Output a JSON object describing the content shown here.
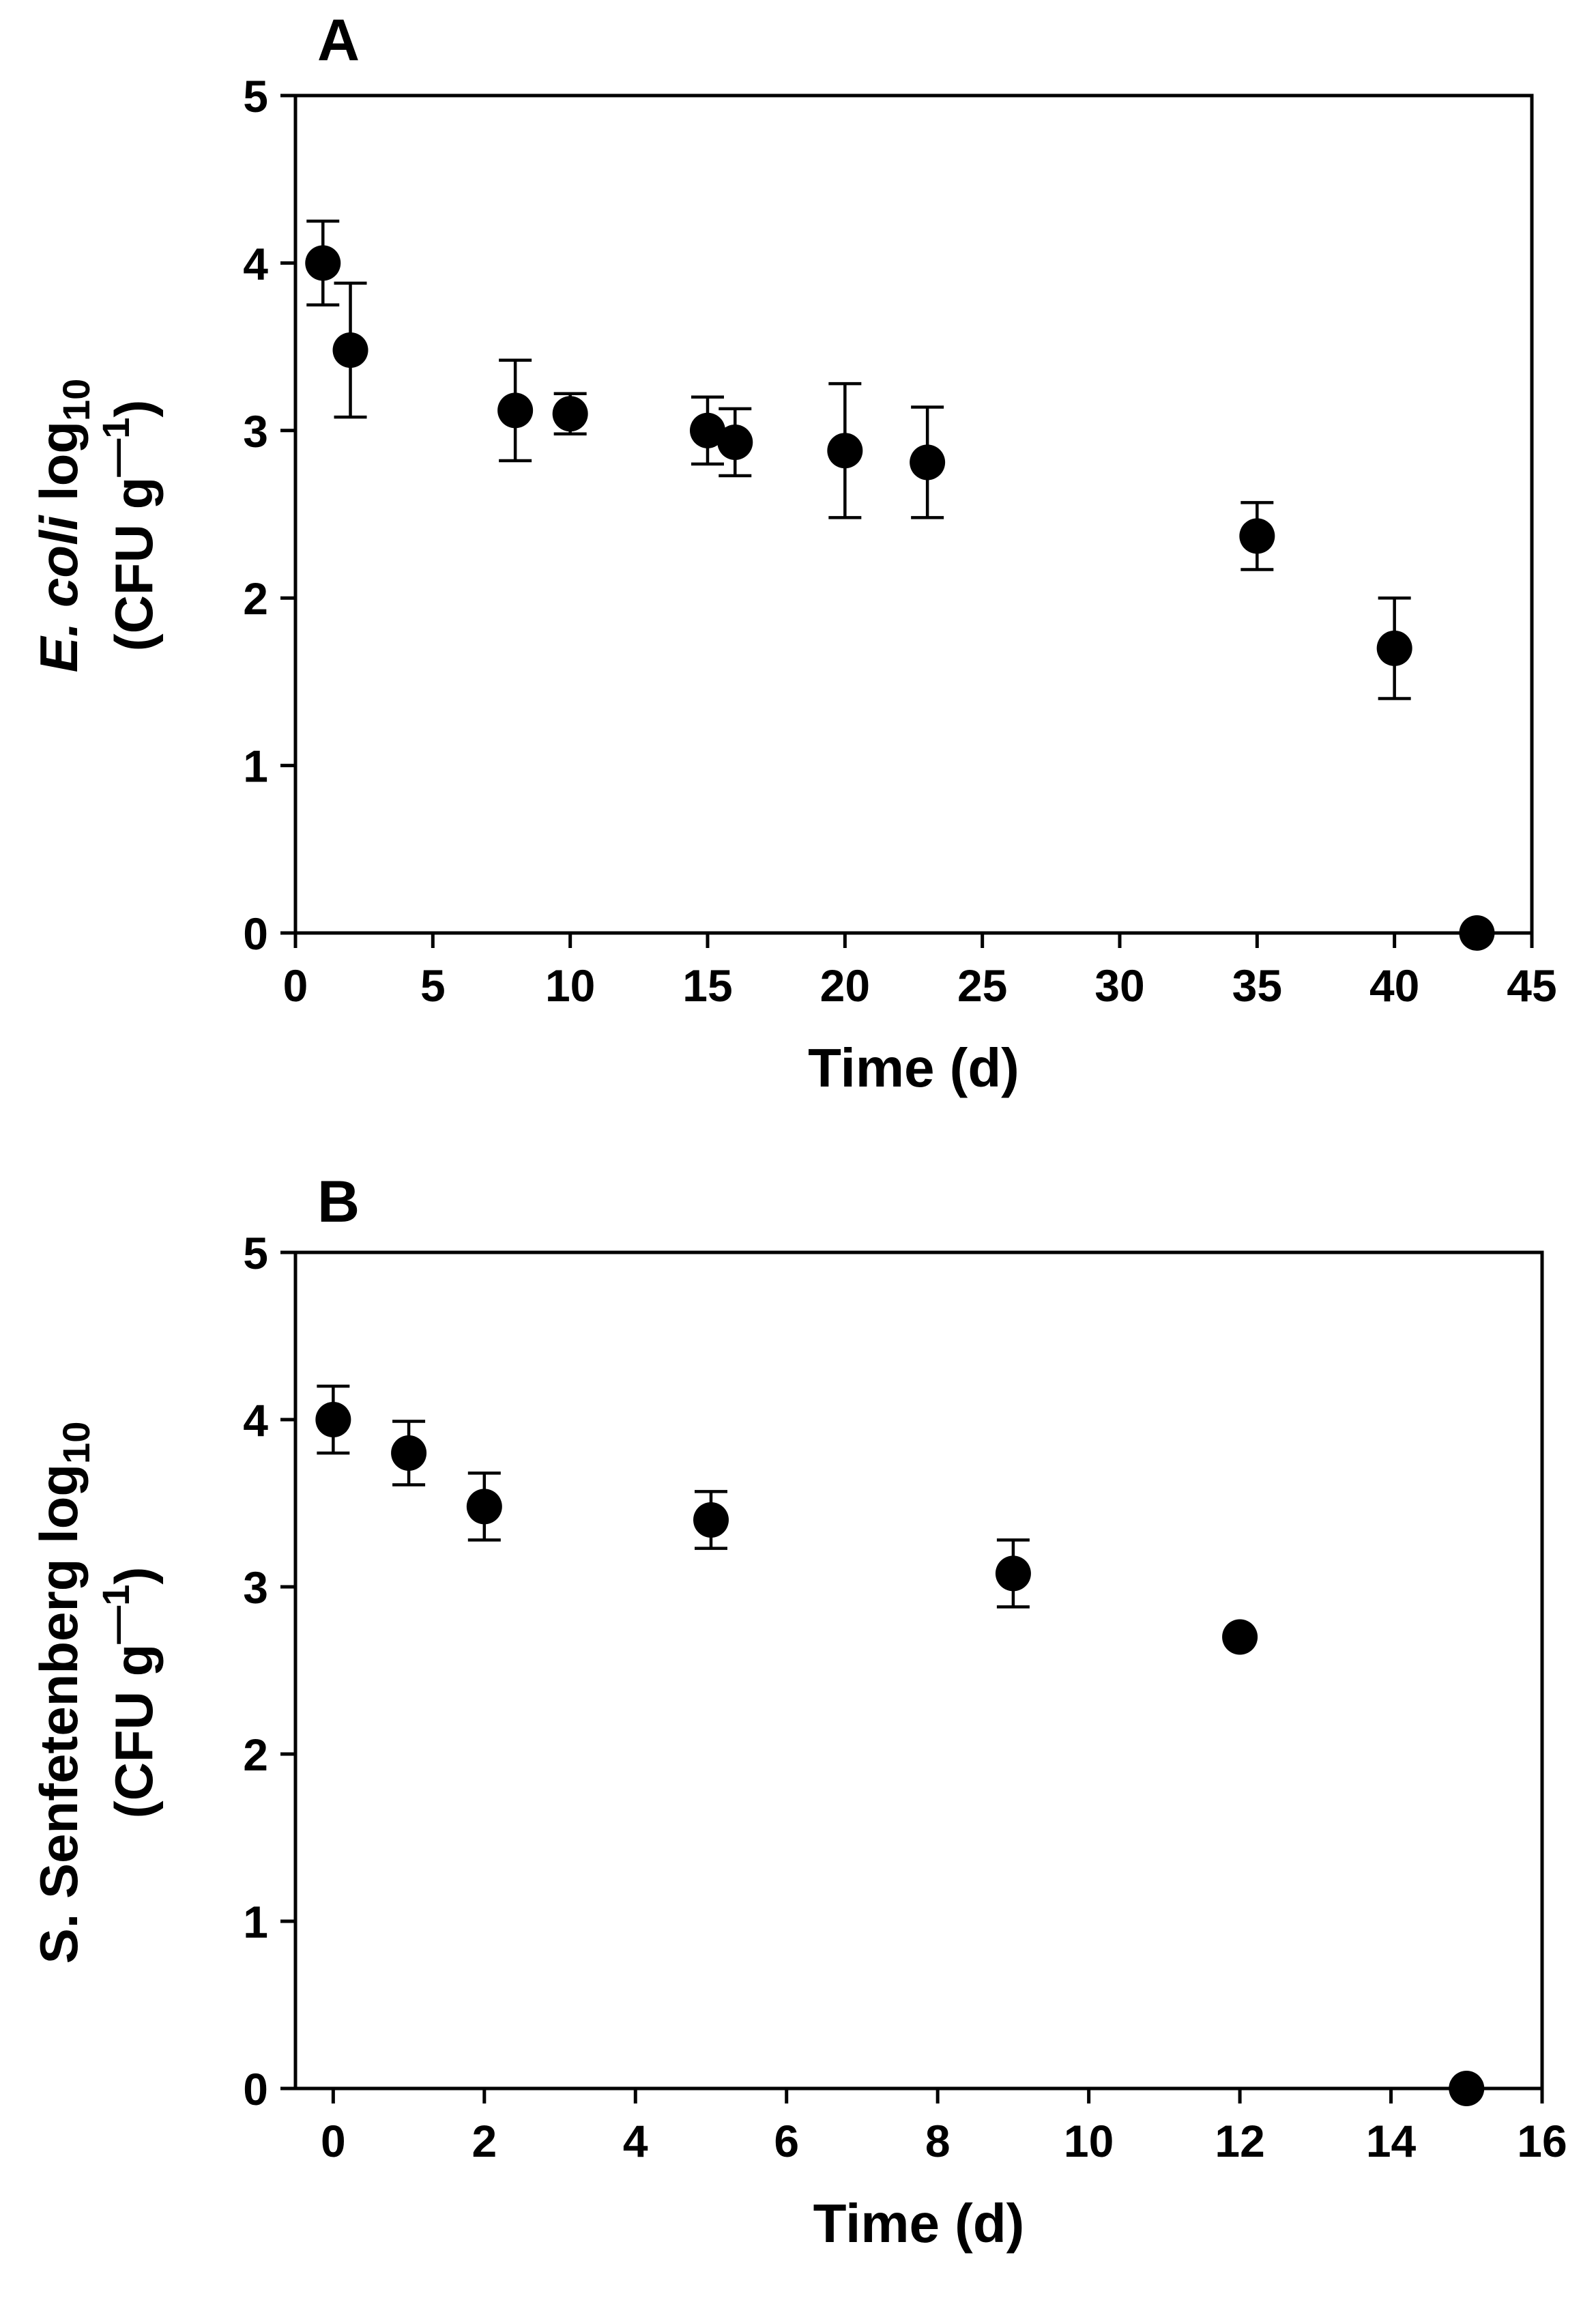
{
  "chart_data": [
    {
      "type": "scatter",
      "panel_label": "A",
      "xlabel": "Time (d)",
      "ylabel_line1_italic": "E. coli",
      "ylabel_line1_rest": " log",
      "ylabel_line1_sub": "10",
      "ylabel_line2": "(CFU g",
      "ylabel_line2_sup": "—1",
      "ylabel_line2_end": ")",
      "xlim": [
        0,
        45
      ],
      "ylim": [
        0,
        5
      ],
      "xticks": [
        0,
        5,
        10,
        15,
        20,
        25,
        30,
        35,
        40,
        45
      ],
      "yticks": [
        0,
        1,
        2,
        3,
        4,
        5
      ],
      "series": [
        {
          "name": "E. coli",
          "x": [
            1,
            2,
            8,
            10,
            15,
            16,
            20,
            23,
            35,
            40,
            43
          ],
          "y": [
            4.0,
            3.48,
            3.12,
            3.1,
            3.0,
            2.93,
            2.88,
            2.81,
            2.37,
            1.7,
            0
          ],
          "err": [
            0.25,
            0.4,
            0.3,
            0.12,
            0.2,
            0.2,
            0.4,
            0.33,
            0.2,
            0.3,
            0
          ]
        }
      ]
    },
    {
      "type": "scatter",
      "panel_label": "B",
      "xlabel": "Time (d)",
      "ylabel_line1_italic": "",
      "ylabel_line1_rest": "S. Senfetenberg log",
      "ylabel_line1_sub": "10",
      "ylabel_line2": "(CFU g",
      "ylabel_line2_sup": "—1",
      "ylabel_line2_end": ")",
      "xlim": [
        -0.5,
        16
      ],
      "ylim": [
        0,
        5
      ],
      "xticks": [
        0,
        2,
        4,
        6,
        8,
        10,
        12,
        14,
        16
      ],
      "yticks": [
        0,
        1,
        2,
        3,
        4,
        5
      ],
      "series": [
        {
          "name": "S. Senfetenberg",
          "x": [
            0,
            1,
            2,
            5,
            9,
            12,
            15
          ],
          "y": [
            4.0,
            3.8,
            3.48,
            3.4,
            3.08,
            2.7,
            0
          ],
          "err": [
            0.2,
            0.19,
            0.2,
            0.17,
            0.2,
            0,
            0
          ]
        }
      ]
    }
  ]
}
